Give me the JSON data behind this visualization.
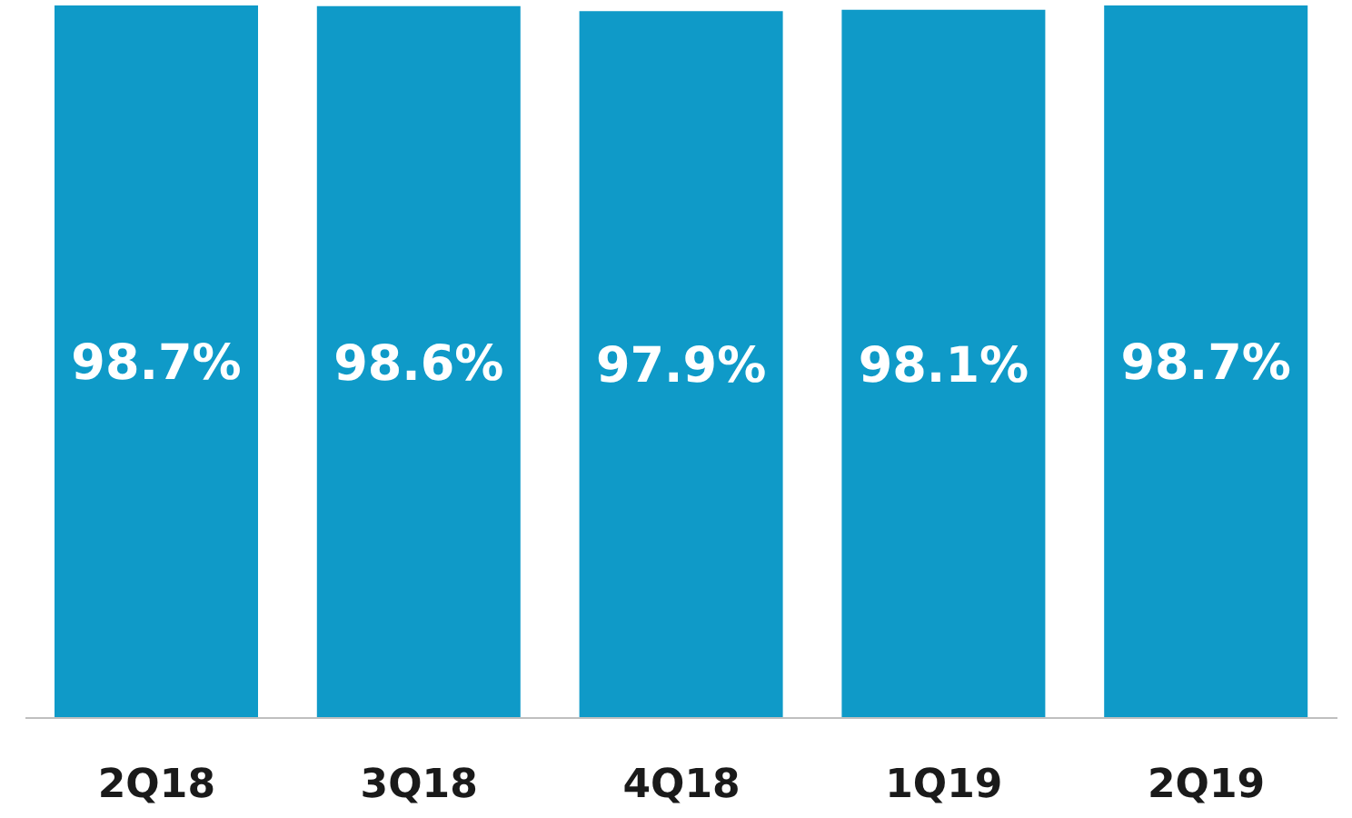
{
  "chart_data": {
    "type": "bar",
    "categories": [
      "2Q18",
      "3Q18",
      "4Q18",
      "1Q19",
      "2Q19"
    ],
    "values": [
      98.7,
      98.6,
      97.9,
      98.1,
      98.7
    ],
    "value_labels": [
      "98.7%",
      "98.6%",
      "97.9%",
      "98.1%",
      "98.7%"
    ],
    "color": "#0f9ac8",
    "tick_labels": "x"
  }
}
